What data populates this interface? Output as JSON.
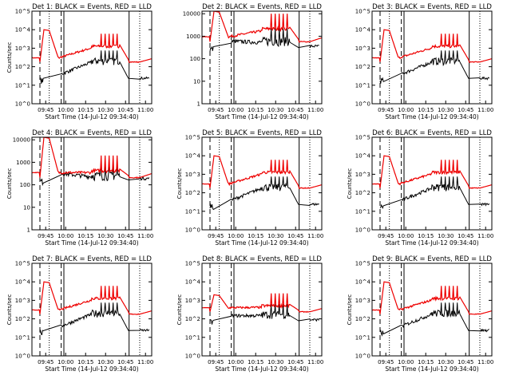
{
  "chart_data": {
    "type": "line",
    "subplots": [
      {
        "title": "Det 1: BLACK = Events, RED = LLD",
        "ylabel": "Counts/sec",
        "xlabel": "Start Time (14-Jul-12 09:34:40)",
        "yscale": "log",
        "ylim": [
          1,
          100000
        ],
        "ytick_labels": [
          "10^0",
          "10^1",
          "10^2",
          "10^3",
          "10^4",
          "10^5"
        ],
        "xtick_labels": [
          "09:45",
          "10:00",
          "10:15",
          "10:30",
          "10:45",
          "11:00"
        ],
        "flare": {
          "red_peak": 10000,
          "red_base": 300,
          "red_post_hi": 1500,
          "black_base": 40,
          "black_post_hi": 300
        }
      },
      {
        "title": "Det 2: BLACK = Events, RED = LLD",
        "ylabel": "",
        "xlabel": "Start Time (14-Jul-12 09:34:40)",
        "yscale": "log",
        "ylim": [
          1,
          13000
        ],
        "ytick_labels": [
          "1",
          "10",
          "100",
          "1000",
          "10000"
        ],
        "xtick_labels": [
          "09:45",
          "10:00",
          "10:15",
          "10:30",
          "10:45",
          "11:00"
        ],
        "flare": {
          "red_peak": 13000,
          "red_base": 950,
          "red_post_hi": 2500,
          "black_base": 600,
          "black_post_hi": 900
        }
      },
      {
        "title": "Det 3: BLACK = Events, RED = LLD",
        "ylabel": "",
        "xlabel": "Start Time (14-Jul-12 09:34:40)",
        "yscale": "log",
        "ylim": [
          1,
          100000
        ],
        "ytick_labels": [
          "10^0",
          "10^1",
          "10^2",
          "10^3",
          "10^4",
          "10^5"
        ],
        "xtick_labels": [
          "09:45",
          "10:00",
          "10:15",
          "10:30",
          "10:45",
          "11:00"
        ],
        "flare": {
          "red_peak": 10000,
          "red_base": 300,
          "red_post_hi": 1500,
          "black_base": 40,
          "black_post_hi": 300
        }
      },
      {
        "title": "Det 4: BLACK = Events, RED = LLD",
        "ylabel": "Counts/sec",
        "xlabel": "Start Time (14-Jul-12 09:34:40)",
        "yscale": "log",
        "ylim": [
          1,
          13000
        ],
        "ytick_labels": [
          "1",
          "10",
          "100",
          "1000",
          "10000"
        ],
        "xtick_labels": [
          "09:45",
          "10:00",
          "10:15",
          "10:30",
          "10:45",
          "11:00"
        ],
        "flare": {
          "red_peak": 13000,
          "red_base": 350,
          "red_post_hi": 500,
          "black_base": 320,
          "black_post_hi": 380
        }
      },
      {
        "title": "Det 5: BLACK = Events, RED = LLD",
        "ylabel": "Counts/sec",
        "xlabel": "Start Time (14-Jul-12 09:34:40)",
        "yscale": "log",
        "ylim": [
          1,
          100000
        ],
        "ytick_labels": [
          "10^0",
          "10^1",
          "10^2",
          "10^3",
          "10^4",
          "10^5"
        ],
        "xtick_labels": [
          "09:45",
          "10:00",
          "10:15",
          "10:30",
          "10:45",
          "11:00"
        ],
        "flare": {
          "red_peak": 10000,
          "red_base": 300,
          "red_post_hi": 1500,
          "black_base": 40,
          "black_post_hi": 300
        }
      },
      {
        "title": "Det 6: BLACK = Events, RED = LLD",
        "ylabel": "Counts/sec",
        "xlabel": "Start Time (14-Jul-12 09:34:40)",
        "yscale": "log",
        "ylim": [
          1,
          100000
        ],
        "ytick_labels": [
          "10^0",
          "10^1",
          "10^2",
          "10^3",
          "10^4",
          "10^5"
        ],
        "xtick_labels": [
          "09:45",
          "10:00",
          "10:15",
          "10:30",
          "10:45",
          "11:00"
        ],
        "flare": {
          "red_peak": 10000,
          "red_base": 300,
          "red_post_hi": 1500,
          "black_base": 40,
          "black_post_hi": 300
        }
      },
      {
        "title": "Det 7: BLACK = Events, RED = LLD",
        "ylabel": "Counts/sec",
        "xlabel": "Start Time (14-Jul-12 09:34:40)",
        "yscale": "log",
        "ylim": [
          1,
          100000
        ],
        "ytick_labels": [
          "10^0",
          "10^1",
          "10^2",
          "10^3",
          "10^4",
          "10^5"
        ],
        "xtick_labels": [
          "09:45",
          "10:00",
          "10:15",
          "10:30",
          "10:45",
          "11:00"
        ],
        "flare": {
          "red_peak": 10000,
          "red_base": 300,
          "red_post_hi": 1500,
          "black_base": 40,
          "black_post_hi": 300
        }
      },
      {
        "title": "Det 8: BLACK = Events, RED = LLD",
        "ylabel": "Counts/sec",
        "xlabel": "Start Time (14-Jul-12 09:34:40)",
        "yscale": "log",
        "ylim": [
          1,
          100000
        ],
        "ytick_labels": [
          "10^0",
          "10^1",
          "10^2",
          "10^3",
          "10^4",
          "10^5"
        ],
        "xtick_labels": [
          "09:45",
          "10:00",
          "10:15",
          "10:30",
          "10:45",
          "11:00"
        ],
        "flare": {
          "red_peak": 2000,
          "red_base": 400,
          "red_post_hi": 600,
          "black_base": 150,
          "black_post_hi": 250
        }
      },
      {
        "title": "Det 9: BLACK = Events, RED = LLD",
        "ylabel": "Counts/sec",
        "xlabel": "Start Time (14-Jul-12 09:34:40)",
        "yscale": "log",
        "ylim": [
          1,
          100000
        ],
        "ytick_labels": [
          "10^0",
          "10^1",
          "10^2",
          "10^3",
          "10^4",
          "10^5"
        ],
        "xtick_labels": [
          "09:45",
          "10:00",
          "10:15",
          "10:30",
          "10:45",
          "11:00"
        ],
        "flare": {
          "red_peak": 10000,
          "red_base": 300,
          "red_post_hi": 1500,
          "black_base": 40,
          "black_post_hi": 300
        }
      }
    ],
    "x_time_minutes": {
      "xlim": [
        0,
        90
      ],
      "tick_values": [
        10.33,
        25.33,
        40.33,
        55.33,
        70.33,
        85.33
      ]
    },
    "vertical_markers": [
      {
        "x": 6,
        "style": "dashed"
      },
      {
        "x": 13,
        "style": "dotted"
      },
      {
        "x": 22,
        "style": "dashed"
      },
      {
        "x": 24,
        "style": "solid"
      },
      {
        "x": 73,
        "style": "solid"
      },
      {
        "x": 81,
        "style": "dotted"
      }
    ],
    "colors": {
      "events": "#000000",
      "lld": "#ee0000"
    }
  }
}
